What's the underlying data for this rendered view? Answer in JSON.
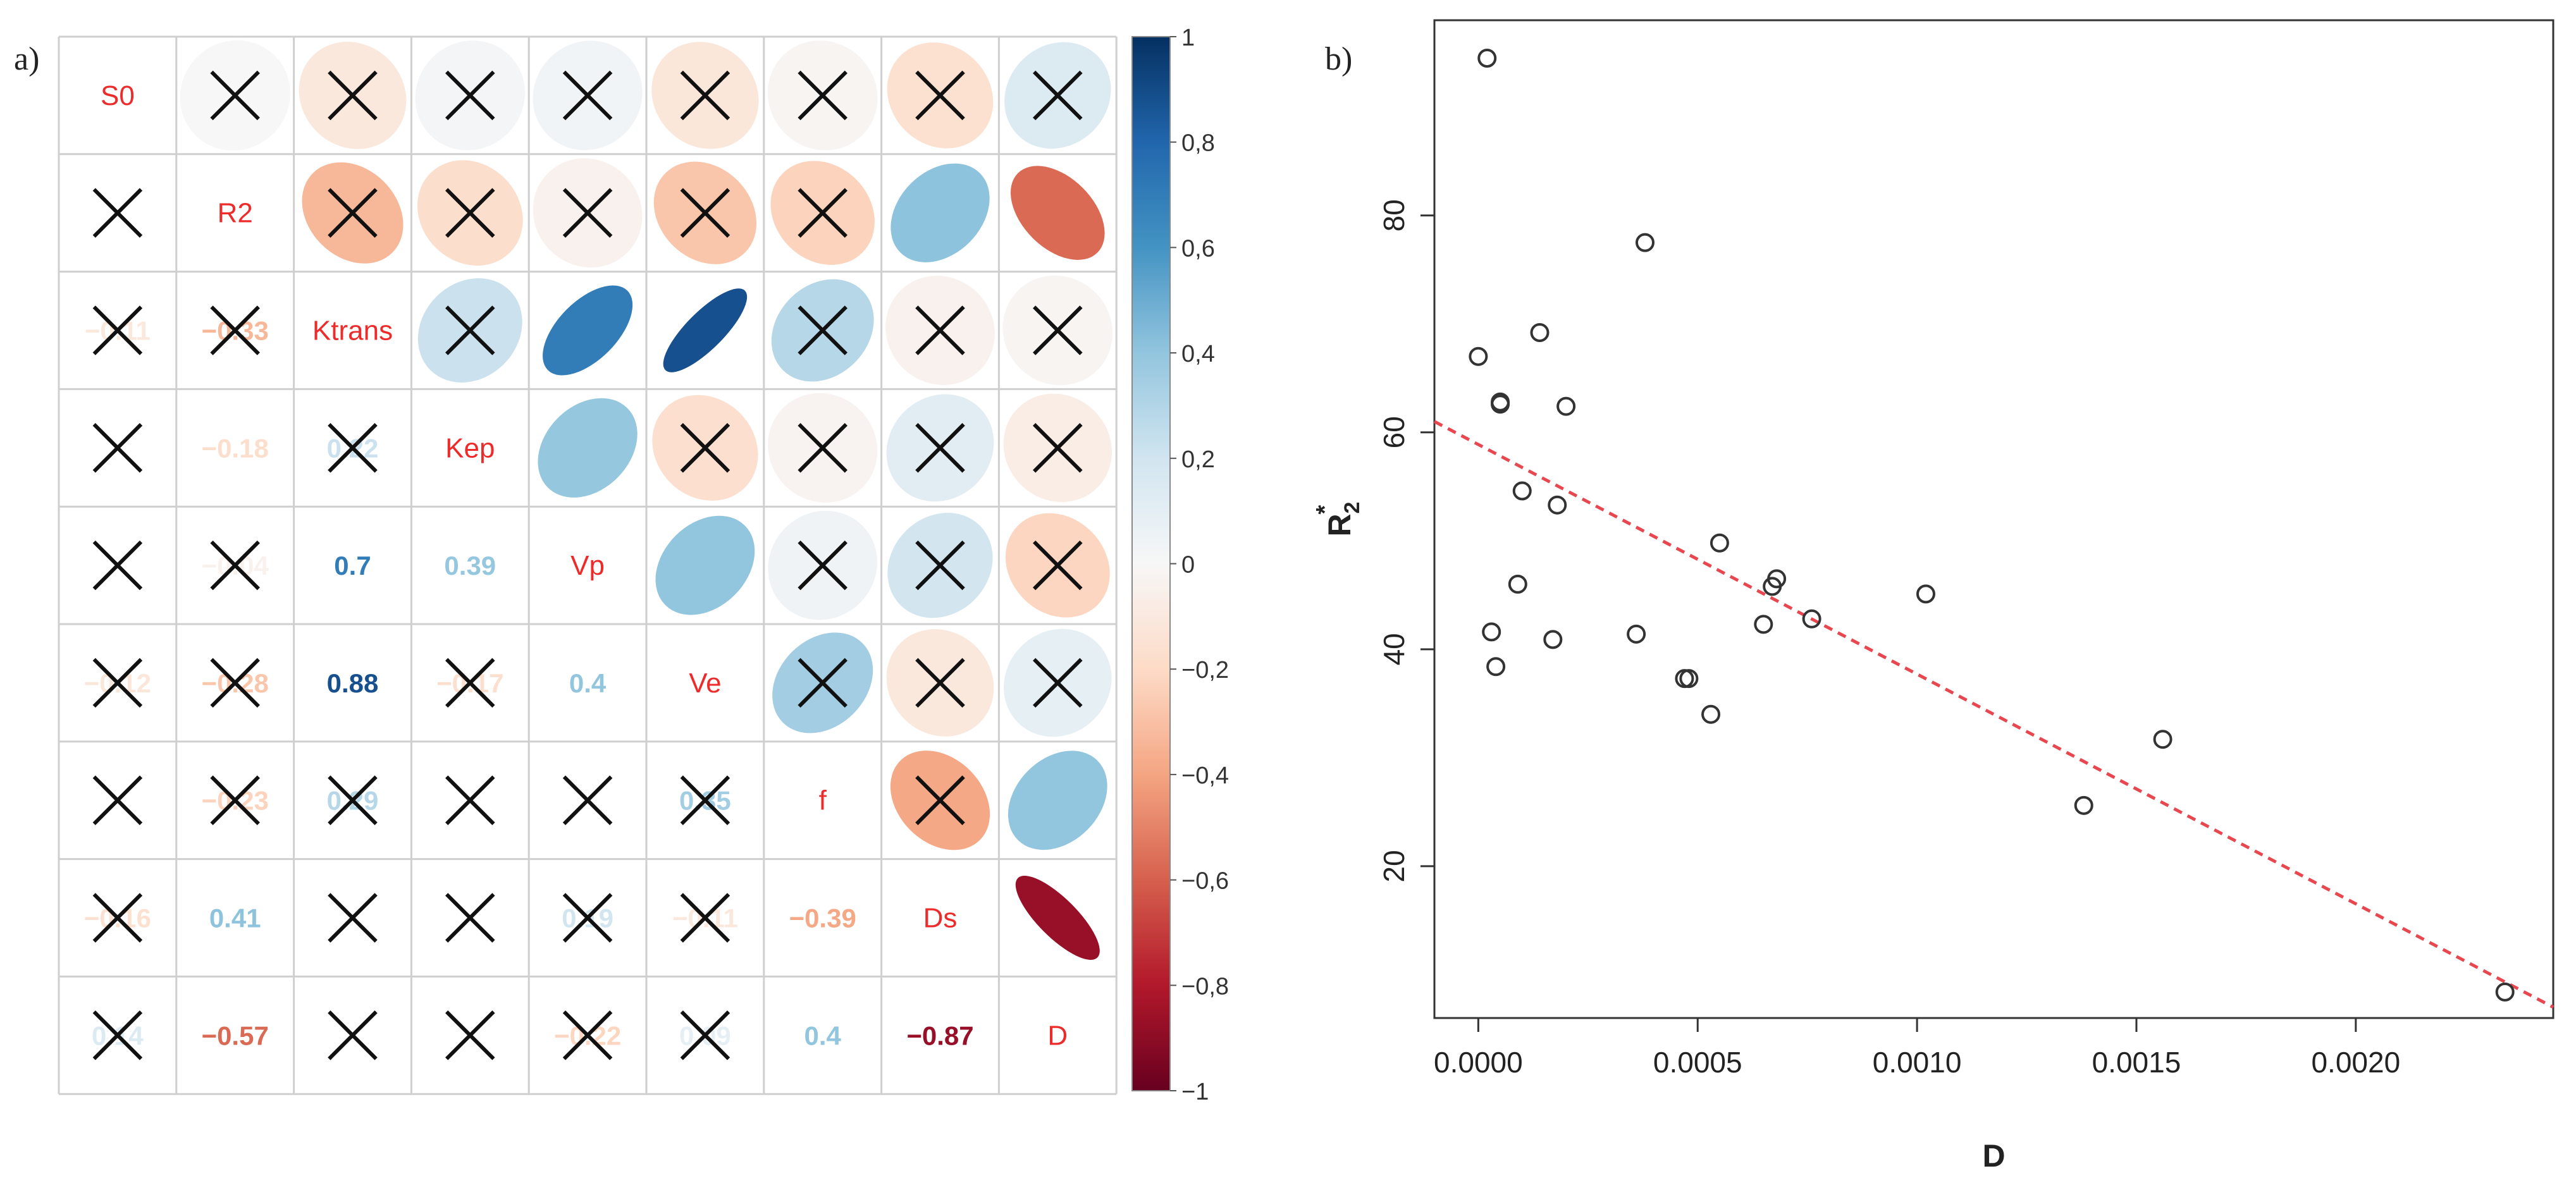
{
  "panel_labels": {
    "a": "a)",
    "b": "b)"
  },
  "chart_data": [
    {
      "type": "heatmap",
      "subtype": "correlation-matrix",
      "variables": [
        "S0",
        "R2",
        "Ktrans",
        "Kep",
        "Vp",
        "Ve",
        "f",
        "Ds",
        "D"
      ],
      "colorbar": {
        "range": [
          -1,
          1
        ],
        "ticks": [
          "1",
          "0,8",
          "0,6",
          "0,4",
          "0,2",
          "0",
          "−0,2",
          "−0,4",
          "−0,6",
          "−0,8",
          "−1"
        ],
        "tick_values": [
          1,
          0.8,
          0.6,
          0.4,
          0.2,
          0,
          -0.2,
          -0.4,
          -0.6,
          -0.8,
          -1
        ]
      },
      "upper_cells": [
        {
          "r": 0,
          "c": 1,
          "v": 0.0,
          "x": true
        },
        {
          "r": 0,
          "c": 2,
          "v": -0.11,
          "x": true
        },
        {
          "r": 0,
          "c": 3,
          "v": 0.02,
          "x": true
        },
        {
          "r": 0,
          "c": 4,
          "v": 0.03,
          "x": true
        },
        {
          "r": 0,
          "c": 5,
          "v": -0.12,
          "x": true
        },
        {
          "r": 0,
          "c": 6,
          "v": -0.02,
          "x": true
        },
        {
          "r": 0,
          "c": 7,
          "v": -0.16,
          "x": true
        },
        {
          "r": 0,
          "c": 8,
          "v": 0.14,
          "x": true
        },
        {
          "r": 1,
          "c": 2,
          "v": -0.33,
          "x": true
        },
        {
          "r": 1,
          "c": 3,
          "v": -0.18,
          "x": true
        },
        {
          "r": 1,
          "c": 4,
          "v": -0.04,
          "x": true
        },
        {
          "r": 1,
          "c": 5,
          "v": -0.28,
          "x": true
        },
        {
          "r": 1,
          "c": 6,
          "v": -0.23,
          "x": true
        },
        {
          "r": 1,
          "c": 7,
          "v": 0.41,
          "x": false
        },
        {
          "r": 1,
          "c": 8,
          "v": -0.57,
          "x": false
        },
        {
          "r": 2,
          "c": 3,
          "v": 0.22,
          "x": true
        },
        {
          "r": 2,
          "c": 4,
          "v": 0.7,
          "x": false
        },
        {
          "r": 2,
          "c": 5,
          "v": 0.88,
          "x": false
        },
        {
          "r": 2,
          "c": 6,
          "v": 0.29,
          "x": true
        },
        {
          "r": 2,
          "c": 7,
          "v": -0.04,
          "x": true
        },
        {
          "r": 2,
          "c": 8,
          "v": -0.02,
          "x": true
        },
        {
          "r": 3,
          "c": 4,
          "v": 0.39,
          "x": false
        },
        {
          "r": 3,
          "c": 5,
          "v": -0.17,
          "x": true
        },
        {
          "r": 3,
          "c": 6,
          "v": -0.03,
          "x": true
        },
        {
          "r": 3,
          "c": 7,
          "v": 0.11,
          "x": true
        },
        {
          "r": 3,
          "c": 8,
          "v": -0.07,
          "x": true
        },
        {
          "r": 4,
          "c": 5,
          "v": 0.4,
          "x": false
        },
        {
          "r": 4,
          "c": 6,
          "v": 0.04,
          "x": true
        },
        {
          "r": 4,
          "c": 7,
          "v": 0.19,
          "x": true
        },
        {
          "r": 4,
          "c": 8,
          "v": -0.22,
          "x": true
        },
        {
          "r": 5,
          "c": 6,
          "v": 0.35,
          "x": true
        },
        {
          "r": 5,
          "c": 7,
          "v": -0.11,
          "x": true
        },
        {
          "r": 5,
          "c": 8,
          "v": 0.09,
          "x": true
        },
        {
          "r": 6,
          "c": 7,
          "v": -0.39,
          "x": true
        },
        {
          "r": 6,
          "c": 8,
          "v": 0.4,
          "x": false
        },
        {
          "r": 7,
          "c": 8,
          "v": -0.87,
          "x": false
        }
      ],
      "lower_labels": [
        {
          "r": 2,
          "c": 0,
          "t": "−0.11"
        },
        {
          "r": 2,
          "c": 1,
          "t": "−0.33"
        },
        {
          "r": 3,
          "c": 1,
          "t": "−0.18"
        },
        {
          "r": 3,
          "c": 2,
          "t": "0.22"
        },
        {
          "r": 4,
          "c": 1,
          "t": "−0.04"
        },
        {
          "r": 4,
          "c": 2,
          "t": "0.7"
        },
        {
          "r": 4,
          "c": 3,
          "t": "0.39"
        },
        {
          "r": 5,
          "c": 0,
          "t": "−0.12"
        },
        {
          "r": 5,
          "c": 1,
          "t": "−0.28"
        },
        {
          "r": 5,
          "c": 2,
          "t": "0.88"
        },
        {
          "r": 5,
          "c": 3,
          "t": "−0.17"
        },
        {
          "r": 5,
          "c": 4,
          "t": "0.4"
        },
        {
          "r": 6,
          "c": 1,
          "t": "−0.23"
        },
        {
          "r": 6,
          "c": 2,
          "t": "0.29"
        },
        {
          "r": 6,
          "c": 5,
          "t": "0.35"
        },
        {
          "r": 7,
          "c": 0,
          "t": "−0.16"
        },
        {
          "r": 7,
          "c": 1,
          "t": "0.41"
        },
        {
          "r": 7,
          "c": 4,
          "t": "0.19"
        },
        {
          "r": 7,
          "c": 5,
          "t": "−0.11"
        },
        {
          "r": 7,
          "c": 6,
          "t": "−0.39"
        },
        {
          "r": 8,
          "c": 0,
          "t": "0.14"
        },
        {
          "r": 8,
          "c": 1,
          "t": "−0.57"
        },
        {
          "r": 8,
          "c": 4,
          "t": "−0.22"
        },
        {
          "r": 8,
          "c": 5,
          "t": "0.09"
        },
        {
          "r": 8,
          "c": 6,
          "t": "0.4"
        },
        {
          "r": 8,
          "c": 7,
          "t": "−0.87"
        }
      ],
      "lower_crossed": [
        [
          1,
          0
        ],
        [
          2,
          0
        ],
        [
          2,
          1
        ],
        [
          3,
          0
        ],
        [
          3,
          2
        ],
        [
          4,
          0
        ],
        [
          4,
          1
        ],
        [
          5,
          0
        ],
        [
          5,
          1
        ],
        [
          5,
          3
        ],
        [
          6,
          0
        ],
        [
          6,
          1
        ],
        [
          6,
          2
        ],
        [
          6,
          3
        ],
        [
          6,
          4
        ],
        [
          6,
          5
        ],
        [
          7,
          0
        ],
        [
          7,
          2
        ],
        [
          7,
          3
        ],
        [
          7,
          4
        ],
        [
          7,
          5
        ],
        [
          8,
          0
        ],
        [
          8,
          2
        ],
        [
          8,
          3
        ],
        [
          8,
          4
        ],
        [
          8,
          5
        ]
      ]
    },
    {
      "type": "scatter",
      "xlabel": "D",
      "ylabel": "R",
      "ylabel_sub": "2",
      "ylabel_sup": "*",
      "xlim": [
        -0.0001,
        0.00245
      ],
      "ylim": [
        6,
        98
      ],
      "xticks": [
        0.0,
        0.0005,
        0.001,
        0.0015,
        0.002
      ],
      "xtick_labels": [
        "0.0000",
        "0.0005",
        "0.0010",
        "0.0015",
        "0.0020"
      ],
      "yticks": [
        20,
        40,
        60,
        80
      ],
      "ytick_labels": [
        "20",
        "40",
        "60",
        "80"
      ],
      "points": [
        [
          2e-05,
          94.5
        ],
        [
          0.00038,
          77.5
        ],
        [
          0.00014,
          69.2
        ],
        [
          0.0,
          67.0
        ],
        [
          5e-05,
          62.8
        ],
        [
          5e-05,
          62.6
        ],
        [
          0.0002,
          62.4
        ],
        [
          0.0001,
          54.6
        ],
        [
          0.00018,
          53.3
        ],
        [
          0.00055,
          49.8
        ],
        [
          9e-05,
          46.0
        ],
        [
          0.00068,
          46.5
        ],
        [
          0.00067,
          45.8
        ],
        [
          0.00102,
          45.1
        ],
        [
          0.00076,
          42.8
        ],
        [
          0.00065,
          42.3
        ],
        [
          3e-05,
          41.6
        ],
        [
          0.00036,
          41.4
        ],
        [
          0.00017,
          40.9
        ],
        [
          4e-05,
          38.4
        ],
        [
          0.00047,
          37.3
        ],
        [
          0.00048,
          37.3
        ],
        [
          0.00053,
          34.0
        ],
        [
          0.00156,
          31.7
        ],
        [
          0.00138,
          25.6
        ],
        [
          0.00234,
          8.4
        ]
      ],
      "fit_line": {
        "x": [
          -0.0001,
          0.00245
        ],
        "y": [
          61.0,
          7.0
        ],
        "style": "dashed",
        "color": "#e8474f"
      }
    }
  ]
}
